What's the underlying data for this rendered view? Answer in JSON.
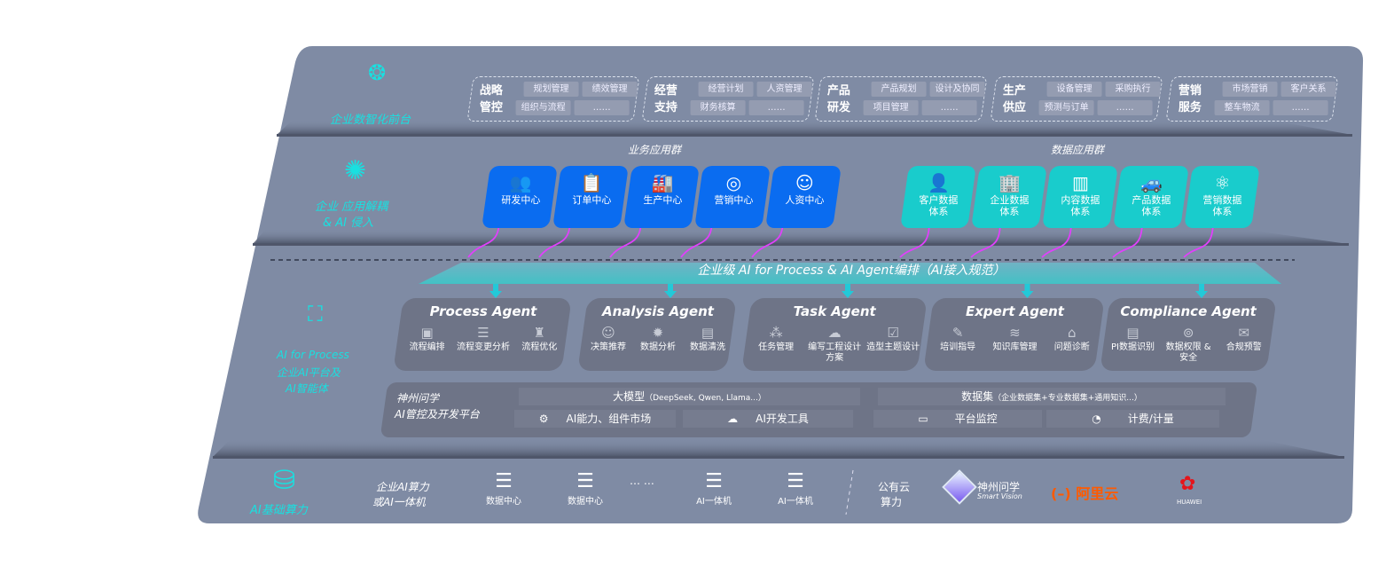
{
  "colors": {
    "panel": "#7f8ba4",
    "accent_teal": "#19e0e0",
    "business_blue": "#0a6cf0",
    "data_teal": "#19cccc",
    "agent_bg": "#6e7487",
    "arrow_magenta": "#e040fb"
  },
  "layer1": {
    "label": "企业数智化前台",
    "icon": "brain-icon",
    "groups": [
      {
        "title1": "战略",
        "title2": "管控",
        "items": [
          "规划管理",
          "绩效管理",
          "组织与流程",
          "……"
        ]
      },
      {
        "title1": "经营",
        "title2": "支持",
        "items": [
          "经营计划",
          "人资管理",
          "财务核算",
          "……"
        ]
      },
      {
        "title1": "产品",
        "title2": "研发",
        "items": [
          "产品规划",
          "设计及协同",
          "项目管理",
          "……"
        ]
      },
      {
        "title1": "生产",
        "title2": "供应",
        "items": [
          "设备管理",
          "采购执行",
          "预测与订单",
          "……"
        ]
      },
      {
        "title1": "营销",
        "title2": "服务",
        "items": [
          "市场营销",
          "客户关系",
          "整车物流",
          "……"
        ]
      }
    ]
  },
  "layer2": {
    "label1": "企业 应用解耦",
    "label2": "& AI 侵入",
    "icon": "molecule-icon",
    "business_title": "业务应用群",
    "data_title": "数据应用群",
    "business": [
      {
        "label": "研发中心",
        "icon": "users-icon"
      },
      {
        "label": "订单中心",
        "icon": "clipboard-icon"
      },
      {
        "label": "生产中心",
        "icon": "factory-icon"
      },
      {
        "label": "营销中心",
        "icon": "target-icon"
      },
      {
        "label": "人资中心",
        "icon": "person-growth-icon"
      }
    ],
    "data": [
      {
        "l1": "客户数据",
        "l2": "体系",
        "icon": "user-icon"
      },
      {
        "l1": "企业数据",
        "l2": "体系",
        "icon": "building-icon"
      },
      {
        "l1": "内容数据",
        "l2": "体系",
        "icon": "books-icon"
      },
      {
        "l1": "产品数据",
        "l2": "体系",
        "icon": "car-icon"
      },
      {
        "l1": "营销数据",
        "l2": "体系",
        "icon": "atom-icon"
      }
    ]
  },
  "banner": "企业级 AI for Process & AI Agent编排（AI接入规范）",
  "layer3": {
    "label1": "AI for Process",
    "label2": "企业AI平台及",
    "label3": "AI智能体",
    "icon": "face-scan-icon",
    "agents": [
      {
        "title": "Process Agent",
        "features": [
          "流程编排",
          "流程变更分析",
          "流程优化"
        ]
      },
      {
        "title": "Analysis Agent",
        "features": [
          "决策推荐",
          "数据分析",
          "数据清洗"
        ]
      },
      {
        "title": "Task Agent",
        "features": [
          "任务管理",
          "编写工程设计方案",
          "造型主题设计"
        ]
      },
      {
        "title": "Expert Agent",
        "features": [
          "培训指导",
          "知识库管理",
          "问题诊断"
        ]
      },
      {
        "title": "Compliance Agent",
        "features": [
          "PI数据识别",
          "数据权限 & 安全",
          "合规预警"
        ]
      }
    ],
    "platform": {
      "title1": "神州问学",
      "title2": "AI管控及开发平台",
      "model": "大模型",
      "model_note": "（DeepSeek, Qwen, Llama...）",
      "dataset": "数据集",
      "dataset_note": "（企业数据集+专业数据集+通用知识...）",
      "tools": [
        "AI能力、组件市场",
        "AI开发工具",
        "平台监控",
        "计费/计量"
      ]
    }
  },
  "layer4": {
    "label": "AI基础算力",
    "icon": "database-icon",
    "private_label1": "企业AI算力",
    "private_label2": "或AI一体机",
    "servers": [
      "数据中心",
      "数据中心",
      "AI一体机",
      "AI一体机"
    ],
    "ellipsis": "… …",
    "public_label1": "公有云",
    "public_label2": "算力",
    "vendors": {
      "shenzhou": "神州问学",
      "shenzhou_en": "Smart Vision",
      "aliyun": "阿里云",
      "huawei": "HUAWEI"
    }
  }
}
